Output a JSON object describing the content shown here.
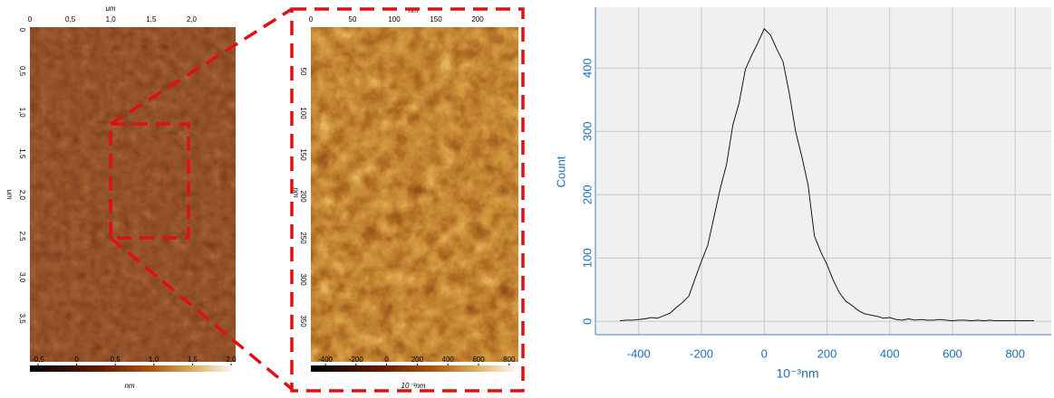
{
  "overview": {
    "x_unit": "um",
    "x_ticks": [
      "0",
      "0,5",
      "1,0",
      "1,5",
      "2,0"
    ],
    "y_unit": "um",
    "y_ticks": [
      "0",
      "0,5",
      "1,0",
      "1,5",
      "2,0",
      "2,5",
      "3,0",
      "3,5"
    ],
    "colorbar_ticks": [
      "-0,5",
      "0",
      "0,5",
      "1,0",
      "1,5",
      "2,0"
    ],
    "colorbar_unit": "nm"
  },
  "zoom": {
    "x_unit": "nm",
    "x_ticks": [
      "0",
      "50",
      "100",
      "150",
      "200"
    ],
    "y_unit": "nm",
    "y_ticks": [
      "50",
      "100",
      "150",
      "200",
      "250",
      "300",
      "350"
    ],
    "colorbar_ticks": [
      "-400",
      "-200",
      "0",
      "200",
      "400",
      "600",
      "800"
    ],
    "colorbar_unit": "10⁻³nm"
  },
  "chart_data": {
    "type": "line",
    "x_label": "10⁻³nm",
    "y_label": "Count",
    "color": "#000000",
    "x": [
      -460,
      -440,
      -420,
      -400,
      -380,
      -360,
      -340,
      -320,
      -300,
      -280,
      -260,
      -240,
      -220,
      -200,
      -180,
      -160,
      -140,
      -120,
      -100,
      -80,
      -60,
      -40,
      -20,
      0,
      20,
      40,
      60,
      80,
      100,
      120,
      140,
      160,
      180,
      200,
      220,
      240,
      260,
      280,
      300,
      320,
      340,
      360,
      380,
      400,
      420,
      440,
      460,
      480,
      500,
      520,
      540,
      560,
      580,
      600,
      620,
      640,
      660,
      680,
      700,
      720,
      740,
      760,
      780,
      800,
      820,
      840,
      860
    ],
    "values": [
      1,
      2,
      2,
      3,
      4,
      6,
      5,
      9,
      13,
      22,
      30,
      40,
      68,
      95,
      120,
      165,
      210,
      248,
      310,
      345,
      398,
      420,
      440,
      462,
      452,
      430,
      410,
      360,
      300,
      260,
      215,
      135,
      110,
      90,
      65,
      45,
      32,
      25,
      17,
      12,
      10,
      8,
      5,
      6,
      3,
      2,
      4,
      2,
      3,
      2,
      2,
      3,
      2,
      1,
      2,
      2,
      1,
      2,
      1,
      2,
      1,
      1,
      1,
      1,
      1,
      1,
      1
    ],
    "xlim": [
      -538,
      915
    ],
    "ylim": [
      -21,
      496
    ],
    "xticks": [
      -400,
      -200,
      0,
      200,
      400,
      600,
      800
    ],
    "yticks": [
      0,
      100,
      200,
      300,
      400
    ],
    "grid": true
  }
}
